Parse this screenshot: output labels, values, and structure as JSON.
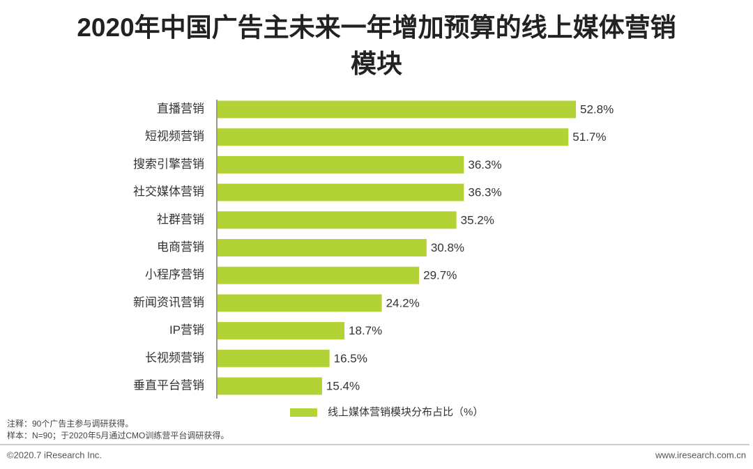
{
  "chart_data": {
    "type": "bar",
    "orientation": "horizontal",
    "title": "2020年中国广告主未来一年增加预算的线上媒体营销模块",
    "categories": [
      "直播营销",
      "短视频营销",
      "搜索引擎营销",
      "社交媒体营销",
      "社群营销",
      "电商营销",
      "小程序营销",
      "新闻资讯营销",
      "IP营销",
      "长视频营销",
      "垂直平台营销"
    ],
    "series": [
      {
        "name": "线上媒体营销模块分布占比（%）",
        "color": "#b2d235",
        "values": [
          52.8,
          51.7,
          36.3,
          36.3,
          35.2,
          30.8,
          29.7,
          24.2,
          18.7,
          16.5,
          15.4
        ],
        "value_labels": [
          "52.8%",
          "51.7%",
          "36.3%",
          "36.3%",
          "35.2%",
          "30.8%",
          "29.7%",
          "24.2%",
          "18.7%",
          "16.5%",
          "15.4%"
        ]
      }
    ],
    "notes": [
      "注释：90个广告主参与调研获得。",
      "样本：N=90；于2020年5月通过CMO训练营平台调研获得。"
    ],
    "footer_left": "©2020.7 iResearch Inc.",
    "footer_right": "www.iresearch.com.cn"
  }
}
